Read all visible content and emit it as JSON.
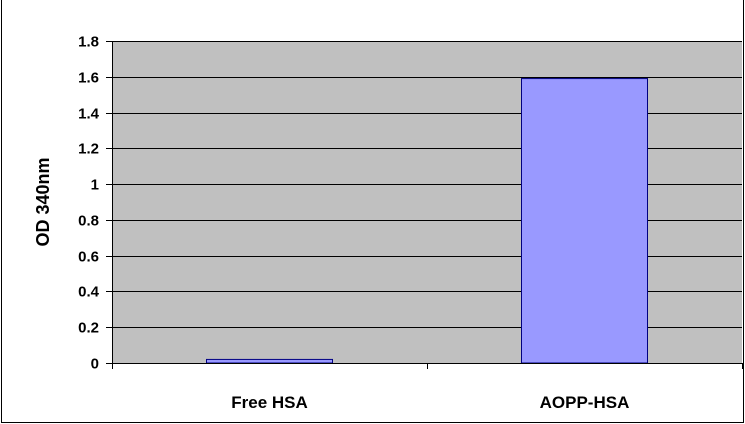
{
  "chart_data": {
    "type": "bar",
    "title": "",
    "xlabel": "",
    "ylabel": "OD 340nm",
    "categories": [
      "Free HSA",
      "AOPP-HSA"
    ],
    "values": [
      0.02,
      1.59
    ],
    "ylim": [
      0,
      1.8
    ],
    "yticks": [
      "0",
      "0.2",
      "0.4",
      "0.6",
      "0.8",
      "1",
      "1.2",
      "1.4",
      "1.6",
      "1.8"
    ],
    "grid": true,
    "legend": "none",
    "colors": {
      "plot_background": "#c0c0c0",
      "bar_fill": "#9999ff",
      "bar_stroke": "#000080",
      "gridline": "#000000",
      "frame": "#000000"
    }
  }
}
